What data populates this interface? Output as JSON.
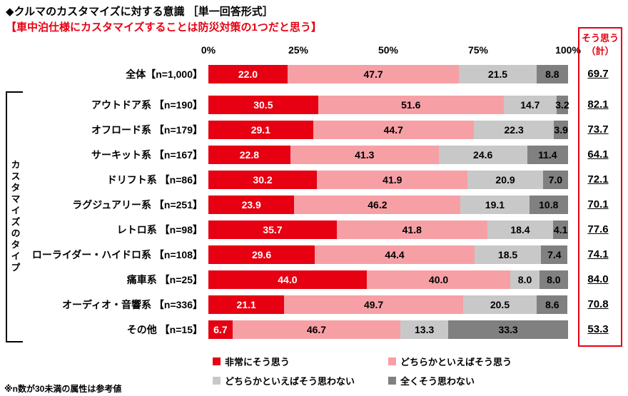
{
  "header": {
    "title": "◆クルマのカスタマイズに対する意識 ［単一回答形式］",
    "subtitle": "【車中泊仕様にカスタマイズすることは防災対策の1つだと思う】"
  },
  "total_column": {
    "header": "そう思う\n（計）"
  },
  "group_label": "カスタマイズのタイプ",
  "footnote": "※n数が30未満の属性は参考値",
  "chart_data": {
    "type": "bar",
    "stacked": true,
    "orientation": "horizontal",
    "title": "車中泊仕様にカスタマイズすることは防災対策の1つだと思う",
    "xlim": [
      0,
      100
    ],
    "x_ticks": [
      "0%",
      "25%",
      "50%",
      "75%",
      "100%"
    ],
    "categories": [
      "全体【n=1,000】",
      "アウトドア系 【n=190】",
      "オフロード系 【n=179】",
      "サーキット系 【n=167】",
      "ドリフト系 【n=86】",
      "ラグジュアリー系 【n=251】",
      "レトロ系 【n=98】",
      "ローライダー・ハイドロ系 【n=108】",
      "痛車系 【n=25】",
      "オーディオ・音響系 【n=336】",
      "その他 【n=15】"
    ],
    "series": [
      {
        "name": "非常にそう思う",
        "color": "#e60012",
        "values": [
          22.0,
          30.5,
          29.1,
          22.8,
          30.2,
          23.9,
          35.7,
          29.6,
          44.0,
          21.1,
          6.7
        ]
      },
      {
        "name": "どちらかといえばそう思う",
        "color": "#f6a0a6",
        "values": [
          47.7,
          51.6,
          44.7,
          41.3,
          41.9,
          46.2,
          41.8,
          44.4,
          40.0,
          49.7,
          46.7
        ]
      },
      {
        "name": "どちらかといえばそう思わない",
        "color": "#c8c8c8",
        "values": [
          21.5,
          14.7,
          22.3,
          24.6,
          20.9,
          19.1,
          18.4,
          18.5,
          8.0,
          20.5,
          13.3
        ]
      },
      {
        "name": "全くそう思わない",
        "color": "#808080",
        "values": [
          8.8,
          3.2,
          3.9,
          11.4,
          7.0,
          10.8,
          4.1,
          7.4,
          8.0,
          8.6,
          33.3
        ]
      }
    ],
    "totals": [
      69.7,
      82.1,
      73.7,
      64.1,
      72.1,
      70.1,
      77.6,
      74.1,
      84.0,
      70.8,
      53.3
    ]
  }
}
